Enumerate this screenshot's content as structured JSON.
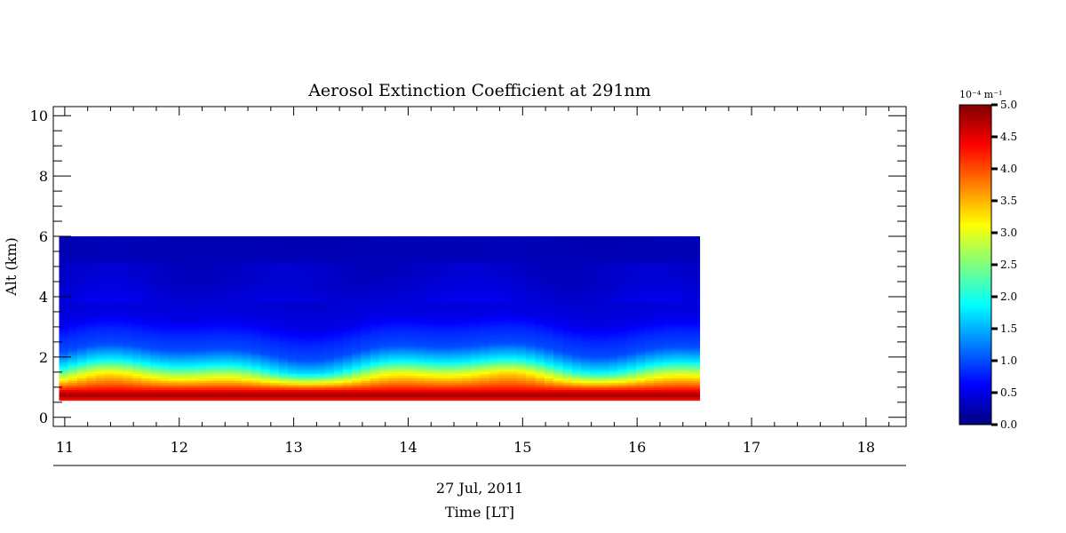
{
  "chart_data": {
    "type": "heatmap",
    "title": "Aerosol Extinction Coefficient at 291nm",
    "ylabel": "Alt (km)",
    "date_label": "27 Jul, 2011",
    "xlabel": "Time [LT]",
    "xlim": [
      10.9,
      18.35
    ],
    "ylim": [
      -0.3,
      10.3
    ],
    "x_ticks": [
      11,
      12,
      13,
      14,
      15,
      16,
      17,
      18
    ],
    "y_ticks": [
      0,
      2,
      4,
      6,
      8,
      10
    ],
    "data_x_range": [
      10.95,
      16.55
    ],
    "data_y_range": [
      0.55,
      6.0
    ],
    "colorbar": {
      "label": "10⁻⁴ m⁻¹",
      "range": [
        0.0,
        5.0
      ],
      "ticks": [
        "0.0",
        "0.5",
        "1.0",
        "1.5",
        "2.0",
        "2.5",
        "3.0",
        "3.5",
        "4.0",
        "4.5",
        "5.0"
      ],
      "colormap": [
        "#00007f",
        "#0000ff",
        "#007fff",
        "#00ffff",
        "#7fff7f",
        "#ffff00",
        "#ff7f00",
        "#ff0000",
        "#7f0000"
      ]
    },
    "profile_description": [
      {
        "alt": 0.6,
        "value": 4.3
      },
      {
        "alt": 0.75,
        "value": 4.9
      },
      {
        "alt": 1.0,
        "value": 4.0
      },
      {
        "alt": 1.3,
        "value": 3.0
      },
      {
        "alt": 1.7,
        "value": 1.8
      },
      {
        "alt": 2.2,
        "value": 1.0
      },
      {
        "alt": 2.7,
        "value": 0.8
      },
      {
        "alt": 3.2,
        "value": 0.5
      },
      {
        "alt": 4.5,
        "value": 0.3
      },
      {
        "alt": 6.0,
        "value": 0.25
      }
    ]
  }
}
